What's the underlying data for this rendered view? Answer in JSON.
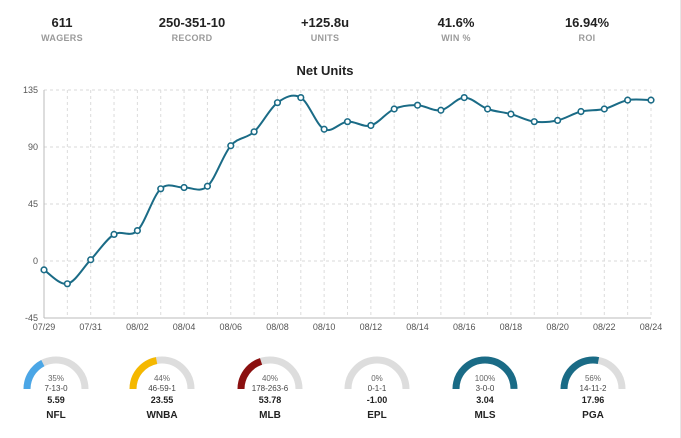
{
  "stats": [
    {
      "value": "611",
      "label": "WAGERS"
    },
    {
      "value": "250-351-10",
      "label": "RECORD"
    },
    {
      "value": "+125.8u",
      "label": "UNITS"
    },
    {
      "value": "41.6%",
      "label": "WIN %"
    },
    {
      "value": "16.94%",
      "label": "ROI"
    }
  ],
  "chart_data": {
    "type": "line",
    "title": "Net Units",
    "xlabel": "",
    "ylabel": "",
    "ylim": [
      -45,
      135
    ],
    "yticks": [
      -45,
      0,
      45,
      90,
      135
    ],
    "xtick_labels": [
      "07/29",
      "07/31",
      "08/02",
      "08/04",
      "08/06",
      "08/08",
      "08/10",
      "08/12",
      "08/14",
      "08/16",
      "08/18",
      "08/20",
      "08/22",
      "08/24"
    ],
    "x": [
      "07/29",
      "07/30",
      "07/31",
      "08/01",
      "08/02",
      "08/03",
      "08/04",
      "08/05",
      "08/06",
      "08/07",
      "08/08",
      "08/09",
      "08/10",
      "08/11",
      "08/12",
      "08/13",
      "08/14",
      "08/15",
      "08/16",
      "08/17",
      "08/18",
      "08/19",
      "08/20",
      "08/21",
      "08/22",
      "08/23",
      "08/24"
    ],
    "series": [
      {
        "values": [
          -7,
          -18,
          1,
          21,
          24,
          57,
          58,
          59,
          91,
          102,
          125,
          129,
          104,
          110,
          107,
          120,
          123,
          119,
          129,
          120,
          116,
          110,
          111,
          118,
          120,
          127,
          127
        ]
      }
    ],
    "grid": true,
    "line_color": "#1a6b86"
  },
  "gauges": [
    {
      "pct_label": "35%",
      "pct": 35,
      "record": "7-13-0",
      "units": "5.59",
      "league": "NFL",
      "color": "#4ba6e6"
    },
    {
      "pct_label": "44%",
      "pct": 44,
      "record": "46-59-1",
      "units": "23.55",
      "league": "WNBA",
      "color": "#f5b800"
    },
    {
      "pct_label": "40%",
      "pct": 40,
      "record": "178-263-6",
      "units": "53.78",
      "league": "MLB",
      "color": "#8b1010"
    },
    {
      "pct_label": "0%",
      "pct": 0,
      "record": "0-1-1",
      "units": "-1.00",
      "league": "EPL",
      "color": "#cccccc"
    },
    {
      "pct_label": "100%",
      "pct": 100,
      "record": "3-0-0",
      "units": "3.04",
      "league": "MLS",
      "color": "#1a6b86"
    },
    {
      "pct_label": "56%",
      "pct": 56,
      "record": "14-11-2",
      "units": "17.96",
      "league": "PGA",
      "color": "#1a6b86"
    }
  ]
}
